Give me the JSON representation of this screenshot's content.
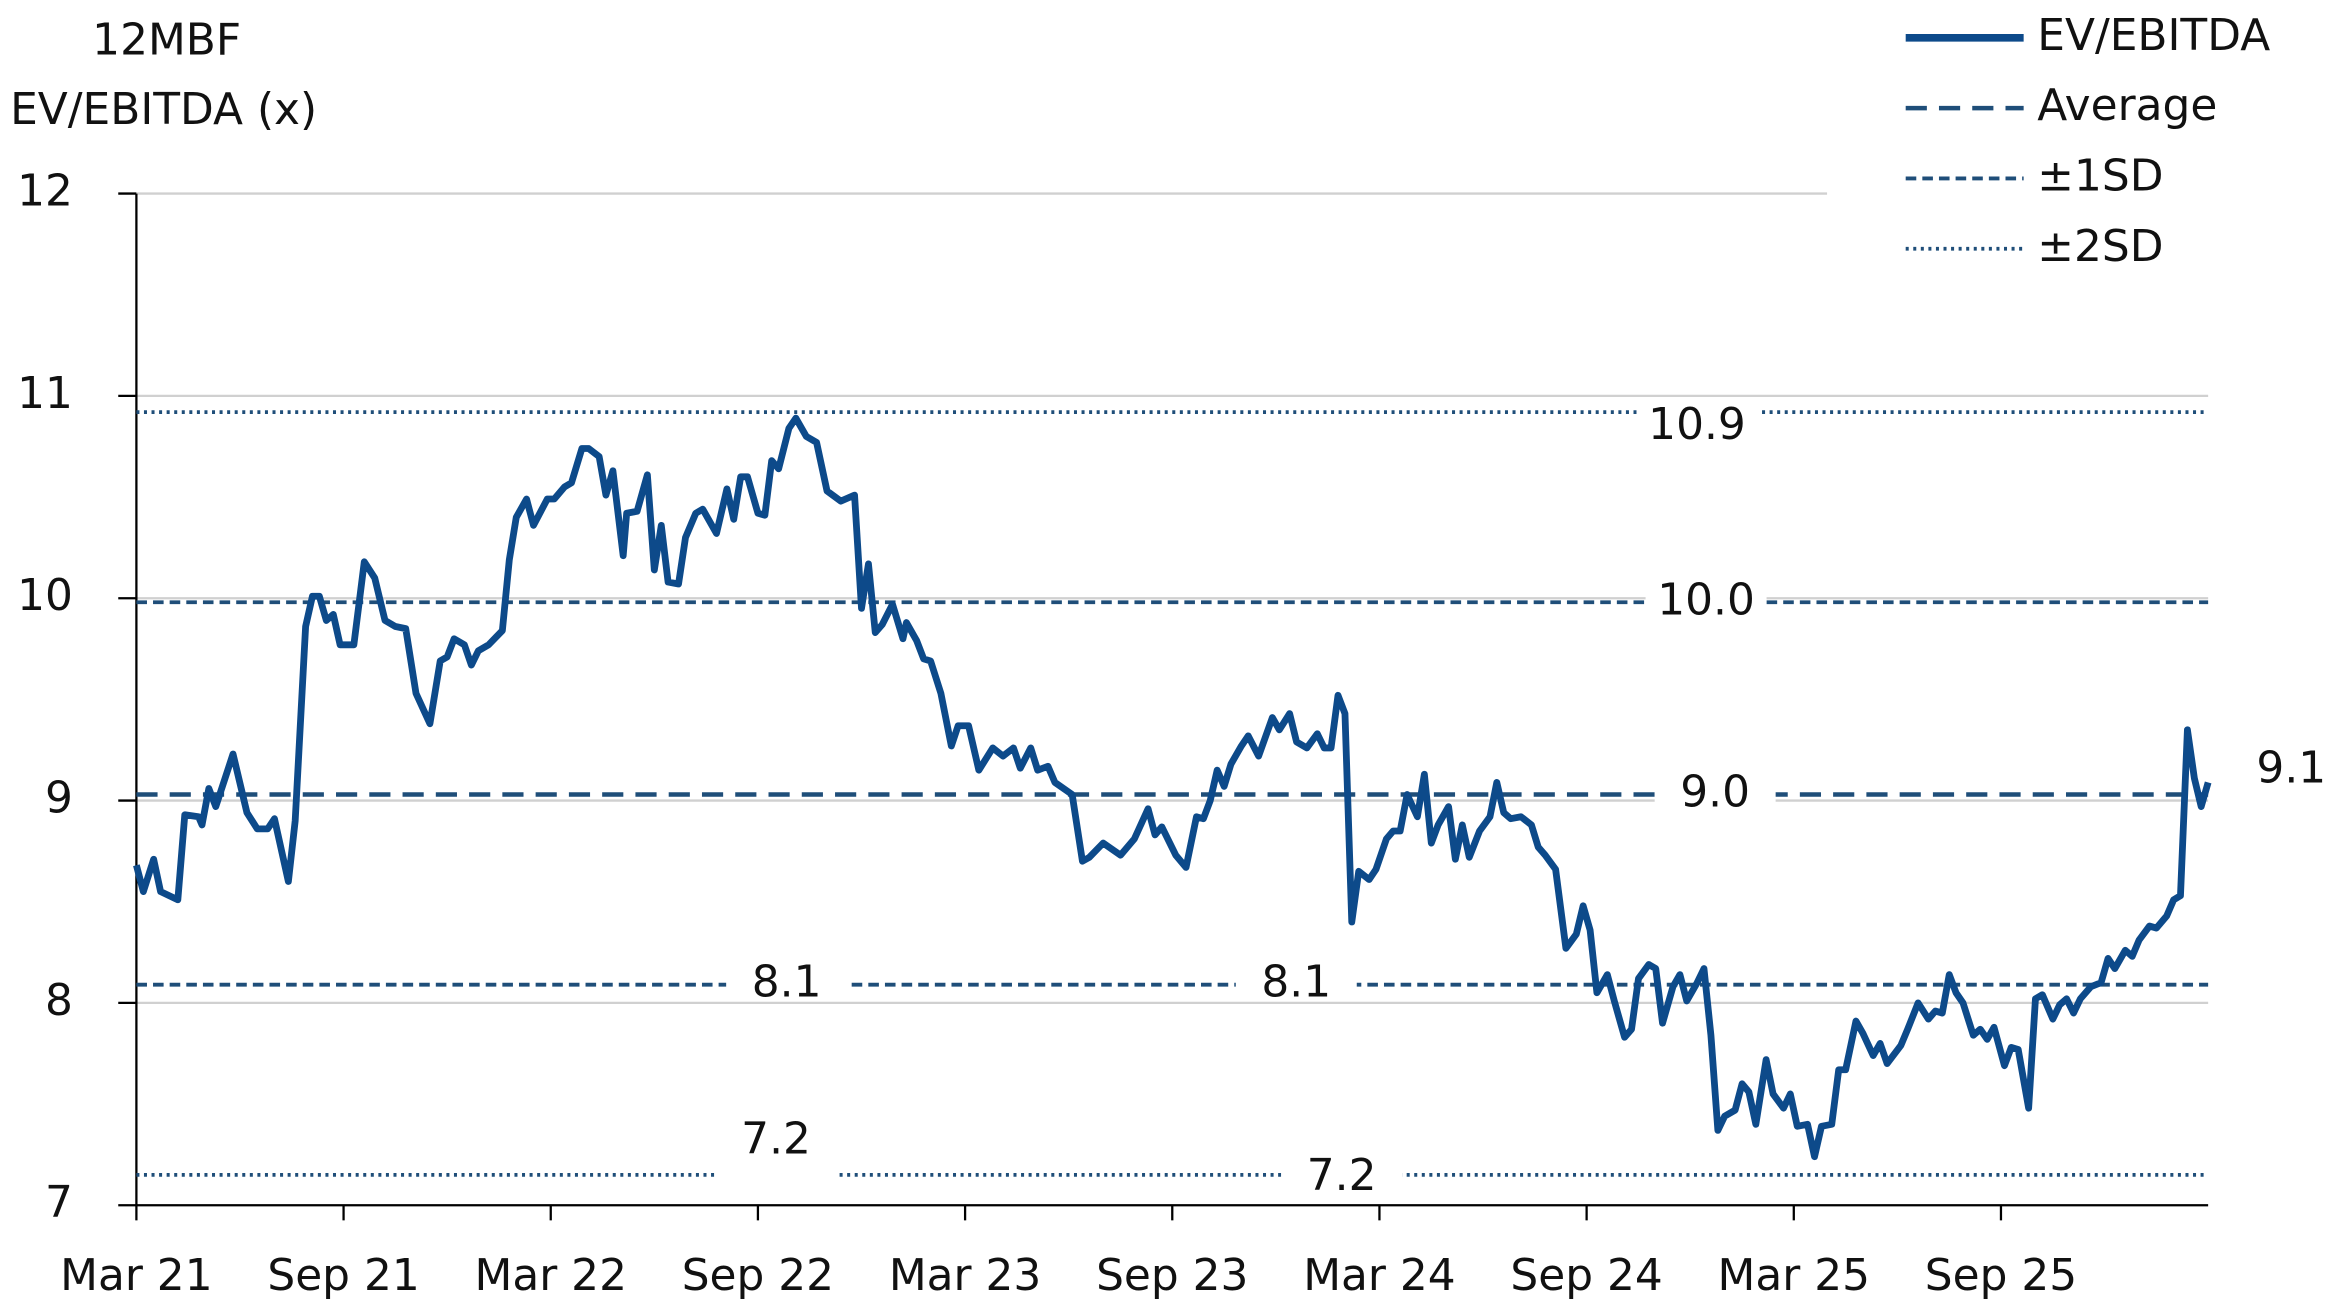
{
  "chart_data": {
    "type": "line",
    "ylabel": [
      "12MBF",
      "EV/EBITDA (x)"
    ],
    "xlim": [
      0,
      60
    ],
    "xticks": [
      {
        "value": 0,
        "label": "Mar 21"
      },
      {
        "value": 6,
        "label": "Sep 21"
      },
      {
        "value": 12,
        "label": "Mar 22"
      },
      {
        "value": 18,
        "label": "Sep 22"
      },
      {
        "value": 24,
        "label": "Mar 23"
      },
      {
        "value": 30,
        "label": "Sep 23"
      },
      {
        "value": 36,
        "label": "Mar 24"
      },
      {
        "value": 42,
        "label": "Sep 24"
      },
      {
        "value": 48,
        "label": "Mar 25"
      },
      {
        "value": 54,
        "label": "Sep 25"
      }
    ],
    "ylim": [
      7,
      12
    ],
    "yticks": [
      7,
      8,
      9,
      10,
      11,
      12
    ],
    "grid": true,
    "legend": "top-right",
    "series": [
      {
        "name": "EV/EBITDA",
        "color": "#0d4a8a",
        "x": [
          0,
          0.2,
          0.5,
          0.7,
          1.2,
          1.4,
          1.8,
          1.9,
          2.1,
          2.3,
          2.8,
          3.2,
          3.5,
          3.8,
          4.0,
          4.4,
          4.6,
          4.9,
          5.1,
          5.3,
          5.5,
          5.7,
          5.9,
          6.3,
          6.6,
          6.9,
          7.2,
          7.5,
          7.8,
          8.1,
          8.5,
          8.8,
          9.0,
          9.2,
          9.5,
          9.7,
          9.9,
          10.2,
          10.6,
          10.8,
          11.0,
          11.3,
          11.5,
          11.9,
          12.1,
          12.4,
          12.6,
          12.9,
          13.1,
          13.4,
          13.6,
          13.8,
          14.1,
          14.2,
          14.5,
          14.8,
          15.0,
          15.2,
          15.4,
          15.7,
          15.9,
          16.2,
          16.4,
          16.8,
          17.1,
          17.3,
          17.5,
          17.7,
          18.0,
          18.2,
          18.4,
          18.6,
          18.9,
          19.1,
          19.4,
          19.7,
          20.0,
          20.4,
          20.8,
          21.0,
          21.2,
          21.4,
          21.6,
          21.9,
          22.2,
          22.3,
          22.6,
          22.8,
          23.0,
          23.3,
          23.6,
          23.8,
          24.1,
          24.4,
          24.8,
          25.1,
          25.4,
          25.6,
          25.9,
          26.1,
          26.4,
          26.6,
          27.1,
          27.4,
          27.6,
          28.0,
          28.5,
          28.9,
          29.3,
          29.5,
          29.7,
          30.1,
          30.4,
          30.7,
          30.9,
          31.1,
          31.3,
          31.5,
          31.7,
          32.0,
          32.2,
          32.5,
          32.9,
          33.1,
          33.4,
          33.6,
          33.9,
          34.2,
          34.4,
          34.6,
          34.8,
          35.0,
          35.2,
          35.4,
          35.7,
          35.9,
          36.2,
          36.4,
          36.6,
          36.8,
          37.1,
          37.3,
          37.5,
          37.7,
          38.0,
          38.2,
          38.4,
          38.6,
          38.9,
          39.2,
          39.4,
          39.6,
          39.8,
          40.1,
          40.4,
          40.6,
          40.8,
          41.1,
          41.4,
          41.7,
          41.9,
          42.1,
          42.3,
          42.6,
          42.8,
          43.1,
          43.3,
          43.5,
          43.8,
          44.0,
          44.2,
          44.5,
          44.7,
          44.9,
          45.2,
          45.4,
          45.6,
          45.8,
          46.0,
          46.3,
          46.5,
          46.7,
          46.9,
          47.2,
          47.4,
          47.7,
          47.9,
          48.1,
          48.4,
          48.6,
          48.8,
          49.1,
          49.3,
          49.5,
          49.8,
          50.0,
          50.3,
          50.5,
          50.7,
          51.1,
          51.3,
          51.6,
          51.9,
          52.1,
          52.3,
          52.5,
          52.7,
          52.9,
          53.2,
          53.4,
          53.6,
          53.8,
          54.1,
          54.3,
          54.5,
          54.8,
          55.0,
          55.2,
          55.5,
          55.7,
          55.9,
          56.1,
          56.3,
          56.6,
          56.9,
          57.1,
          57.3,
          57.6,
          57.8,
          58.0,
          58.3,
          58.5,
          58.8,
          59.0,
          59.2,
          59.4,
          59.6,
          59.8,
          60.0
        ],
        "values": [
          8.68,
          8.55,
          8.71,
          8.55,
          8.51,
          8.93,
          8.92,
          8.88,
          9.06,
          8.97,
          9.23,
          8.94,
          8.86,
          8.86,
          8.91,
          8.6,
          8.9,
          9.86,
          10.01,
          10.01,
          9.89,
          9.92,
          9.77,
          9.77,
          10.18,
          10.1,
          9.89,
          9.86,
          9.85,
          9.53,
          9.38,
          9.69,
          9.71,
          9.8,
          9.77,
          9.67,
          9.74,
          9.77,
          9.84,
          10.19,
          10.4,
          10.49,
          10.36,
          10.49,
          10.49,
          10.55,
          10.57,
          10.74,
          10.74,
          10.7,
          10.51,
          10.63,
          10.21,
          10.42,
          10.43,
          10.61,
          10.14,
          10.36,
          10.08,
          10.07,
          10.3,
          10.42,
          10.44,
          10.32,
          10.54,
          10.39,
          10.6,
          10.6,
          10.42,
          10.41,
          10.68,
          10.64,
          10.84,
          10.89,
          10.8,
          10.77,
          10.53,
          10.48,
          10.51,
          9.95,
          10.17,
          9.83,
          9.87,
          9.97,
          9.8,
          9.88,
          9.79,
          9.7,
          9.69,
          9.53,
          9.27,
          9.37,
          9.37,
          9.15,
          9.26,
          9.22,
          9.26,
          9.16,
          9.26,
          9.15,
          9.17,
          9.09,
          9.03,
          8.7,
          8.72,
          8.79,
          8.73,
          8.81,
          8.96,
          8.83,
          8.87,
          8.73,
          8.67,
          8.92,
          8.91,
          9.0,
          9.15,
          9.07,
          9.18,
          9.27,
          9.32,
          9.22,
          9.41,
          9.35,
          9.43,
          9.29,
          9.26,
          9.33,
          9.26,
          9.26,
          9.52,
          9.43,
          8.4,
          8.65,
          8.61,
          8.66,
          8.81,
          8.85,
          8.85,
          9.03,
          8.92,
          9.13,
          8.79,
          8.88,
          8.97,
          8.71,
          8.88,
          8.72,
          8.85,
          8.92,
          9.09,
          8.94,
          8.91,
          8.92,
          8.88,
          8.77,
          8.73,
          8.66,
          8.27,
          8.34,
          8.48,
          8.36,
          8.05,
          8.14,
          8.01,
          7.83,
          7.87,
          8.12,
          8.19,
          8.17,
          7.9,
          8.08,
          8.14,
          8.01,
          8.1,
          8.17,
          7.84,
          7.37,
          7.44,
          7.47,
          7.6,
          7.56,
          7.4,
          7.72,
          7.55,
          7.48,
          7.55,
          7.39,
          7.4,
          7.24,
          7.39,
          7.4,
          7.67,
          7.67,
          7.91,
          7.85,
          7.74,
          7.8,
          7.7,
          7.79,
          7.87,
          8.0,
          7.92,
          7.96,
          7.95,
          8.14,
          8.05,
          8.0,
          7.84,
          7.87,
          7.82,
          7.88,
          7.69,
          7.78,
          7.77,
          7.48,
          8.02,
          8.04,
          7.92,
          7.99,
          8.02,
          7.95,
          8.02,
          8.08,
          8.1,
          8.22,
          8.17,
          8.26,
          8.23,
          8.31,
          8.38,
          8.37,
          8.43,
          8.51,
          8.53,
          9.35,
          9.11,
          8.97,
          9.09
        ],
        "last_label": "9.1"
      }
    ],
    "reference_lines": [
      {
        "name": "Average",
        "style": "dashed",
        "color": "#1f4e79",
        "lines": [
          {
            "value": 9.03,
            "labels": [
              "9.0"
            ]
          }
        ]
      },
      {
        "name": "±1SD",
        "style": "fine-dashed",
        "color": "#1f4e79",
        "lines": [
          {
            "value": 9.98,
            "labels": [
              "10.0"
            ]
          },
          {
            "value": 8.09,
            "labels": [
              "8.1",
              "8.1"
            ]
          }
        ]
      },
      {
        "name": "±2SD",
        "style": "dotted",
        "color": "#1f4e79",
        "lines": [
          {
            "value": 10.92,
            "labels": [
              "10.9"
            ]
          },
          {
            "value": 7.15,
            "labels": [
              "7.2",
              "7.2"
            ]
          }
        ]
      }
    ]
  }
}
